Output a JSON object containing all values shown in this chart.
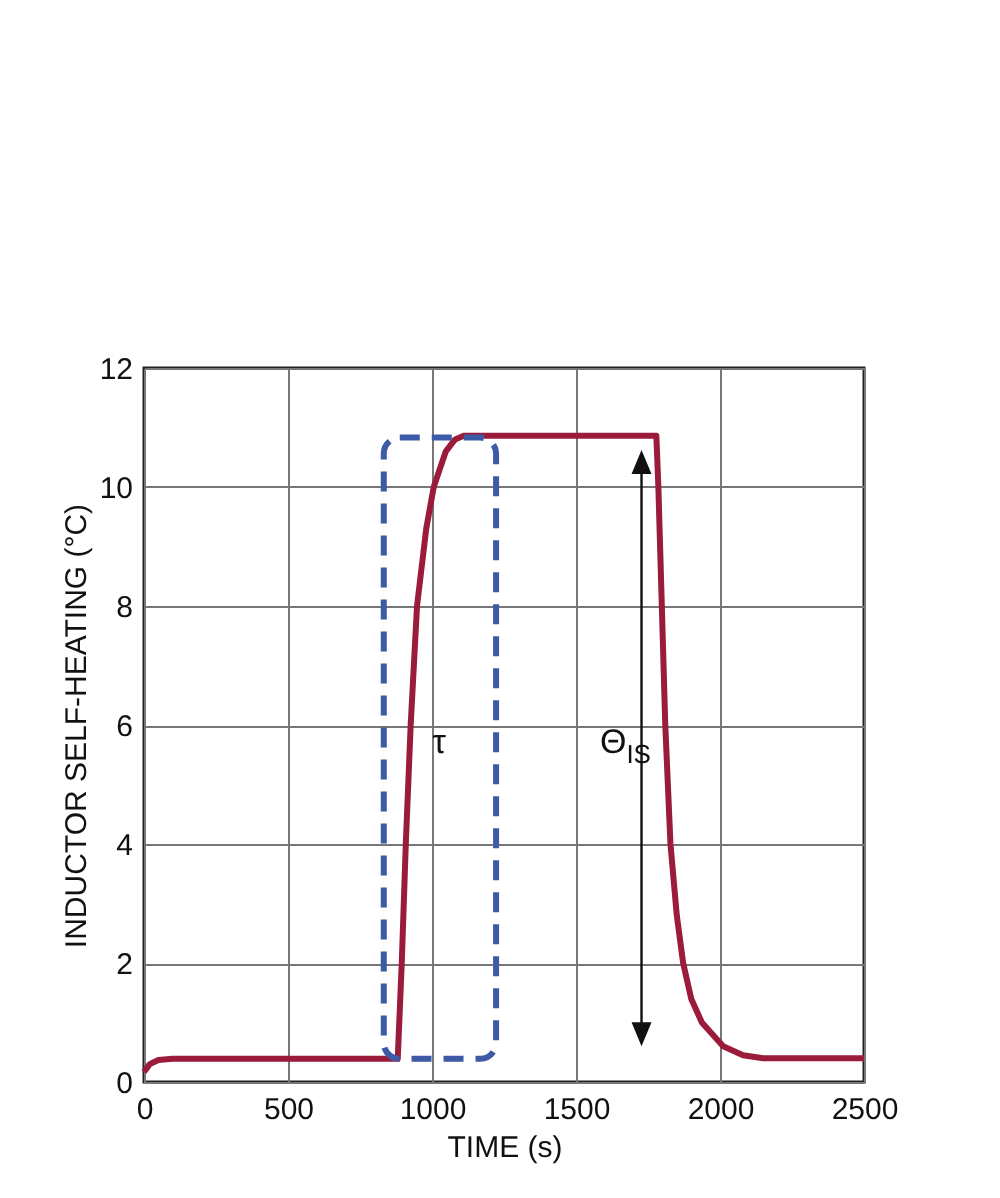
{
  "chart_data": {
    "type": "line",
    "xlabel": "TIME (s)",
    "ylabel": "INDUCTOR SELF-HEATING (°C)",
    "x": [
      0,
      20,
      50,
      100,
      881,
      895,
      909,
      926,
      948,
      980,
      1006,
      1048,
      1080,
      1110,
      1779,
      1786,
      1798,
      1810,
      1828,
      1850,
      1872,
      1900,
      1937,
      2011,
      2080,
      2150,
      2500
    ],
    "series": [
      {
        "color": "#9b1b3a",
        "values": [
          0.17,
          0.3,
          0.37,
          0.39,
          0.39,
          2,
          4,
          6,
          8,
          9.3,
          10,
          10.6,
          10.8,
          10.86,
          10.86,
          10,
          8,
          6,
          4,
          2.8,
          2,
          1.4,
          1,
          0.6,
          0.45,
          0.4,
          0.4
        ]
      }
    ],
    "xlim": [
      0,
      2500
    ],
    "xticks": [
      0,
      500,
      1000,
      1500,
      2000,
      2500
    ],
    "ylim": [
      0,
      12
    ],
    "yticks": [
      0,
      2,
      4,
      6,
      8,
      10,
      12
    ],
    "grid": true,
    "marker": "none",
    "line_style": "solid",
    "annotations": [
      "τ",
      "Θ$_{IS}$"
    ]
  }
}
